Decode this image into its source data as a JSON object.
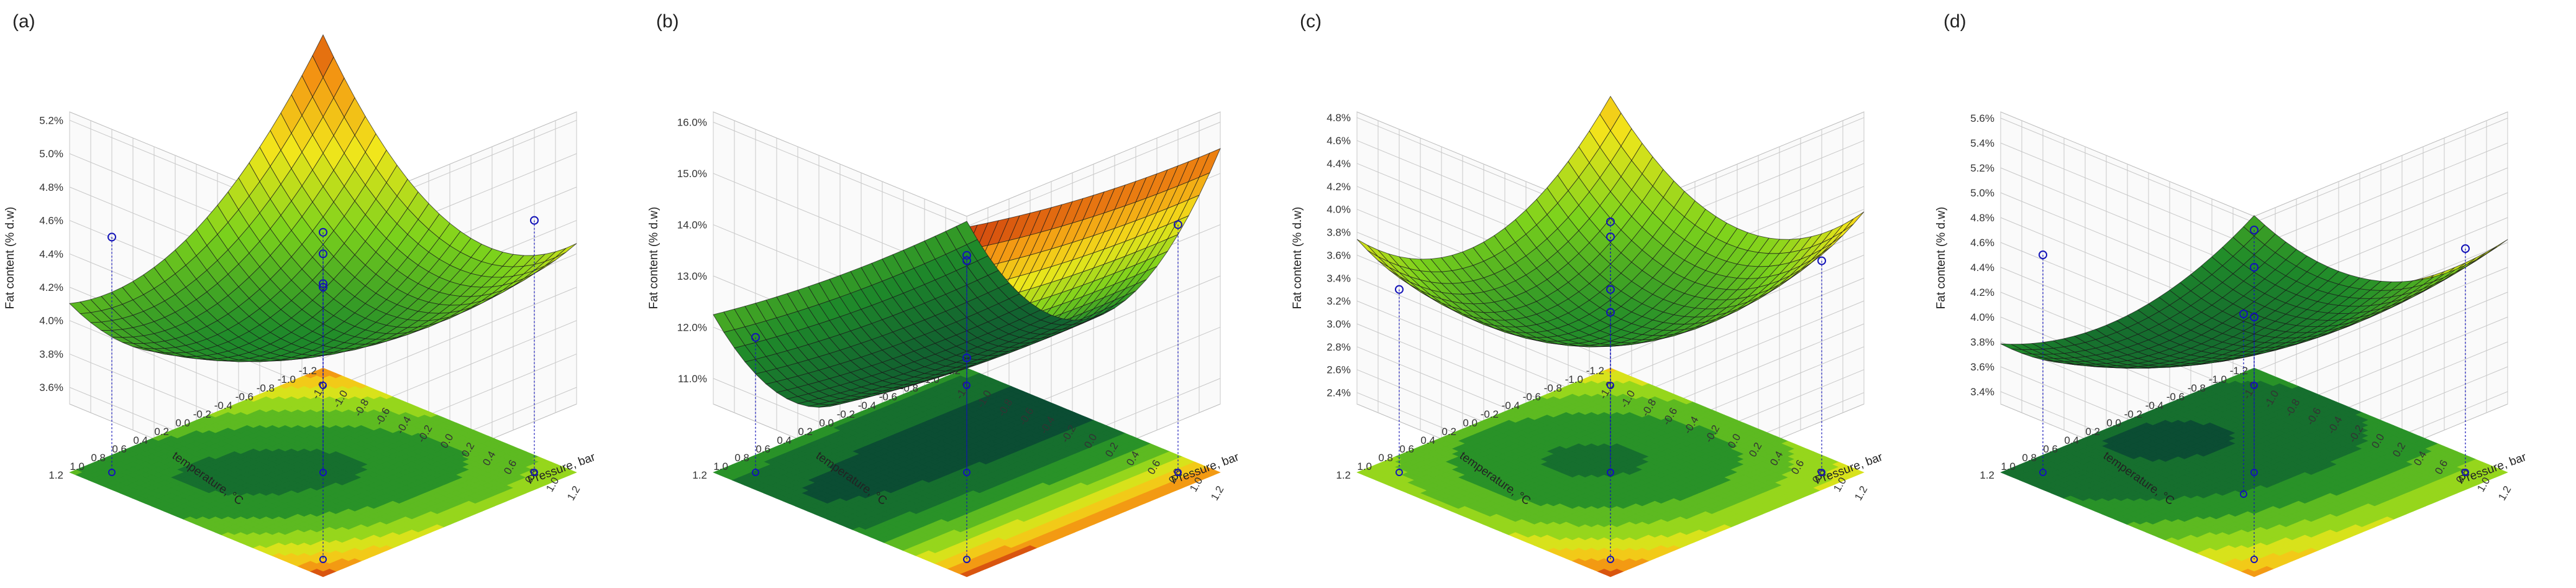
{
  "colors": {
    "low": "#0b4d33",
    "mid_low": "#1f8a2a",
    "mid": "#7cd21c",
    "mid_high": "#f2e61b",
    "high_orange": "#f39112",
    "high": "#b80b0b",
    "points": "#1313b8"
  },
  "chart_data": [
    {
      "panel_label": "(a)",
      "type": "surface3d",
      "title": "",
      "zlabel": "Fat content (% d.w)",
      "xlabel": "Pressure, bar",
      "ylabel": "temperature, °C",
      "x_ticks": [
        "-1.2",
        "-1.0",
        "-0.8",
        "-0.6",
        "-0.4",
        "-0.2",
        "0.0",
        "0.2",
        "0.4",
        "0.6",
        "0.8",
        "1.0",
        "1.2"
      ],
      "y_ticks": [
        "-1.2",
        "-1.0",
        "-0.8",
        "-0.6",
        "-0.4",
        "-0.2",
        "0.0",
        "0.2",
        "0.4",
        "0.6",
        "0.8",
        "1.0",
        "1.2"
      ],
      "z_ticks": [
        "3.6%",
        "3.8%",
        "4.0%",
        "4.2%",
        "4.4%",
        "4.6%",
        "4.8%",
        "5.0%",
        "5.2%"
      ],
      "zlim": [
        3.5,
        5.25
      ],
      "model": {
        "b0": 3.85,
        "bx": 0.1,
        "by": -0.05,
        "bxx": 0.35,
        "byy": 0.25,
        "bxy": 0.3
      },
      "points": [
        {
          "x": -1,
          "y": -1,
          "z": 3.7
        },
        {
          "x": 1,
          "y": -1,
          "z": 4.6
        },
        {
          "x": -1,
          "y": 1,
          "z": 4.5
        },
        {
          "x": 1,
          "y": 1,
          "z": 5.05
        },
        {
          "x": 0,
          "y": 0,
          "z": 4.4
        },
        {
          "x": 0,
          "y": 0,
          "z": 4.2
        }
      ]
    },
    {
      "panel_label": "(b)",
      "type": "surface3d",
      "title": "",
      "zlabel": "Fat content (% d.w)",
      "xlabel": "Pressure, bar",
      "ylabel": "temperature, °C",
      "x_ticks": [
        "-1.2",
        "-1.0",
        "-0.8",
        "-0.6",
        "-0.4",
        "-0.2",
        "0.0",
        "0.2",
        "0.4",
        "0.6",
        "0.8",
        "1.0",
        "1.2"
      ],
      "y_ticks": [
        "-1.2",
        "-1.0",
        "-0.8",
        "-0.6",
        "-0.4",
        "-0.2",
        "0.0",
        "0.2",
        "0.4",
        "0.6",
        "0.8",
        "1.0",
        "1.2"
      ],
      "z_ticks": [
        "11.0%",
        "12.0%",
        "13.0%",
        "14.0%",
        "15.0%",
        "16.0%"
      ],
      "zlim": [
        10.5,
        16.2
      ],
      "model": {
        "b0": 11.2,
        "bx": 1.5,
        "by": 0.15,
        "bxx": 1.8,
        "byy": 0.1,
        "bxy": 0.05
      },
      "points": [
        {
          "x": -1,
          "y": -1,
          "z": 11.6
        },
        {
          "x": 1,
          "y": -1,
          "z": 14.0
        },
        {
          "x": -1,
          "y": 1,
          "z": 11.8
        },
        {
          "x": 1,
          "y": 1,
          "z": 15.1
        },
        {
          "x": 0,
          "y": 0,
          "z": 11.4
        }
      ]
    },
    {
      "panel_label": "(c)",
      "type": "surface3d",
      "title": "",
      "zlabel": "Fat content (% d.w)",
      "xlabel": "Pressure, bar",
      "ylabel": "temperature, °C",
      "x_ticks": [
        "-1.2",
        "-1.0",
        "-0.8",
        "-0.6",
        "-0.4",
        "-0.2",
        "0.0",
        "0.2",
        "0.4",
        "0.6",
        "0.8",
        "1.0",
        "1.2"
      ],
      "y_ticks": [
        "-1.2",
        "-1.0",
        "-0.8",
        "-0.6",
        "-0.4",
        "-0.2",
        "0.0",
        "0.2",
        "0.4",
        "0.6",
        "0.8",
        "1.0",
        "1.2"
      ],
      "z_ticks": [
        "2.4%",
        "2.6%",
        "2.8%",
        "3.0%",
        "3.2%",
        "3.4%",
        "3.6%",
        "3.8%",
        "4.0%",
        "4.2%",
        "4.4%",
        "4.6%",
        "4.8%"
      ],
      "zlim": [
        2.3,
        4.85
      ],
      "model": {
        "b0": 2.85,
        "bx": 0.2,
        "by": 0.1,
        "bxx": 0.45,
        "byy": 0.45,
        "bxy": 0.2
      },
      "points": [
        {
          "x": -1,
          "y": -1,
          "z": 3.0
        },
        {
          "x": 1,
          "y": -1,
          "z": 3.55
        },
        {
          "x": -1,
          "y": 1,
          "z": 3.3
        },
        {
          "x": 1,
          "y": 1,
          "z": 4.65
        },
        {
          "x": 0,
          "y": 0,
          "z": 3.3
        },
        {
          "x": 0,
          "y": 0,
          "z": 3.1
        }
      ]
    },
    {
      "panel_label": "(d)",
      "type": "surface3d",
      "title": "",
      "zlabel": "Fat content (% d.w)",
      "xlabel": "Pressure, bar",
      "ylabel": "temperature, °C",
      "x_ticks": [
        "-1.2",
        "-1.0",
        "-0.8",
        "-0.6",
        "-0.4",
        "-0.2",
        "0.0",
        "0.2",
        "0.4",
        "0.6",
        "0.8",
        "1.0",
        "1.2"
      ],
      "y_ticks": [
        "-1.2",
        "-1.0",
        "-0.8",
        "-0.6",
        "-0.4",
        "-0.2",
        "0.0",
        "0.2",
        "0.4",
        "0.6",
        "0.8",
        "1.0",
        "1.2"
      ],
      "z_ticks": [
        "3.4%",
        "3.6%",
        "3.8%",
        "4.0%",
        "4.2%",
        "4.4%",
        "4.6%",
        "4.8%",
        "5.0%",
        "5.2%",
        "5.4%",
        "5.6%"
      ],
      "zlim": [
        3.3,
        5.65
      ],
      "model": {
        "b0": 3.7,
        "bx": 0.45,
        "by": 0.1,
        "bxx": 0.3,
        "byy": 0.2,
        "bxy": 0.15
      },
      "points": [
        {
          "x": -1,
          "y": -1,
          "z": 3.7
        },
        {
          "x": 1,
          "y": -1,
          "z": 4.55
        },
        {
          "x": -1,
          "y": 1,
          "z": 4.5
        },
        {
          "x": 1,
          "y": 1,
          "z": 5.4
        },
        {
          "x": 0,
          "y": 0,
          "z": 4.0
        },
        {
          "x": 0.2,
          "y": 0.3,
          "z": 4.2
        }
      ]
    }
  ]
}
